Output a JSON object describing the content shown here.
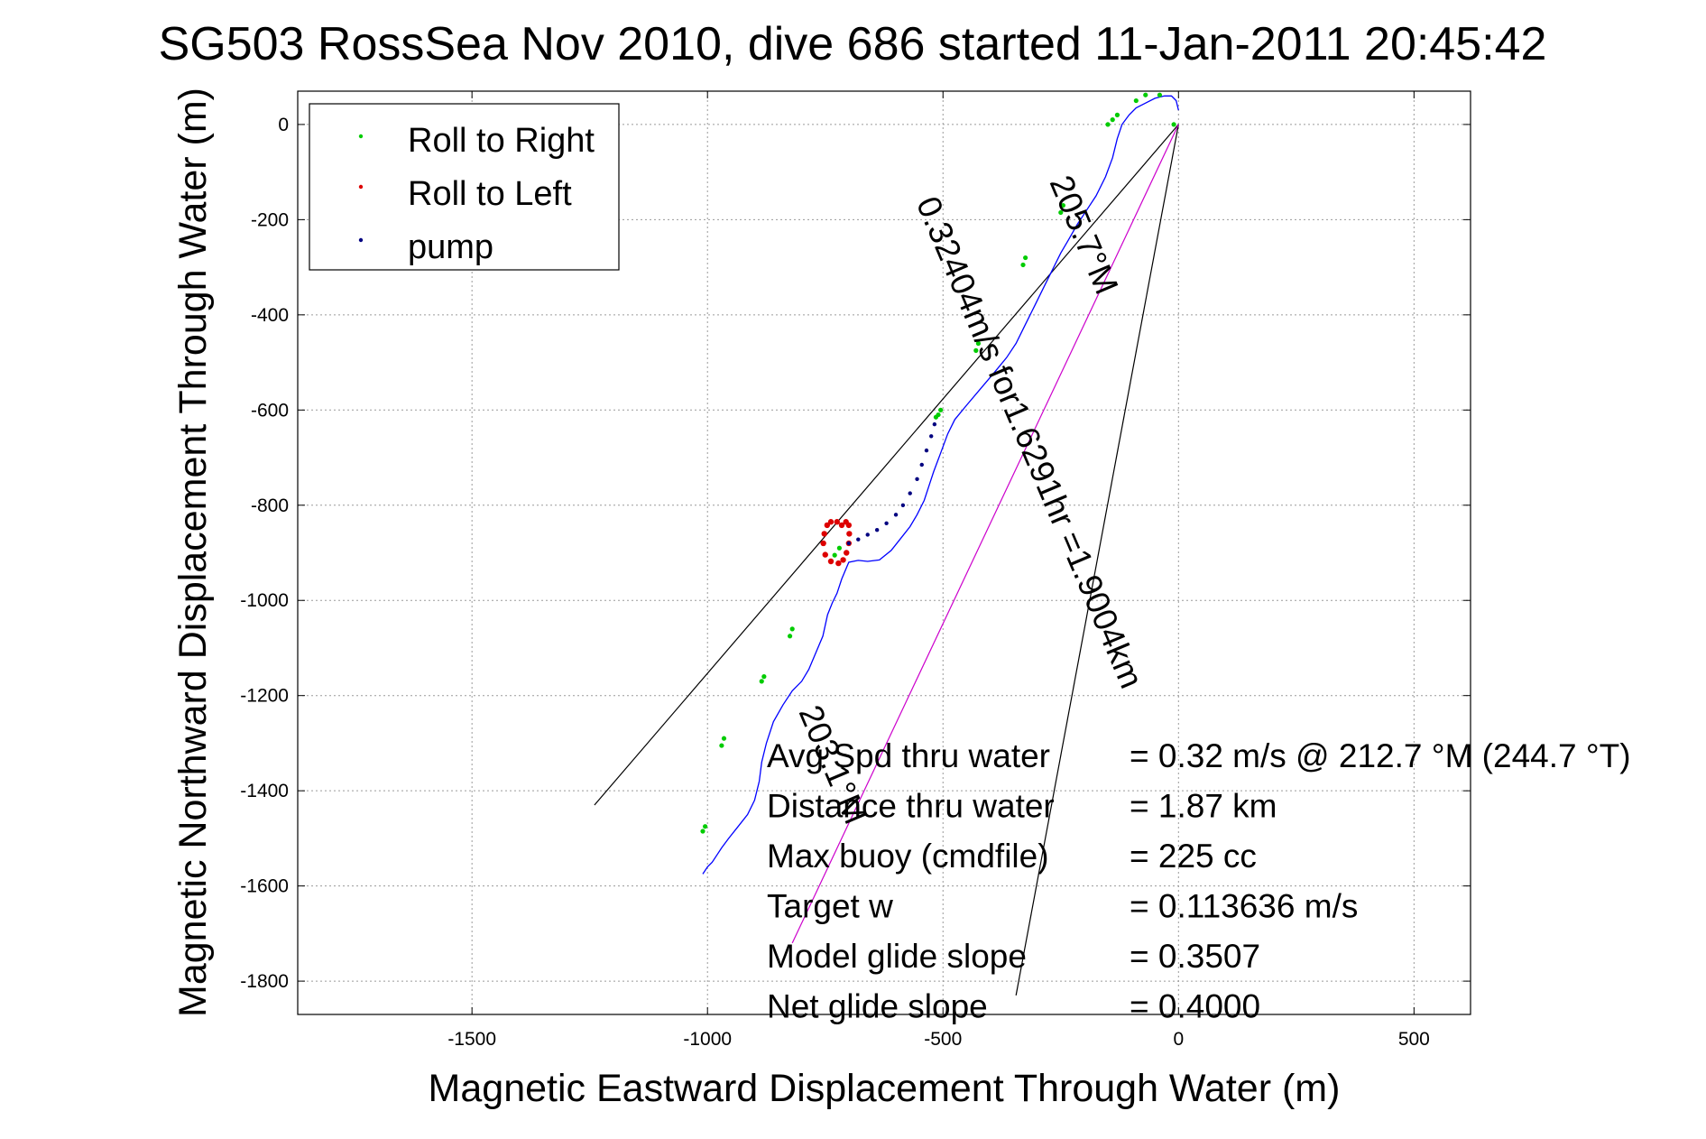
{
  "chart_data": {
    "type": "scatter",
    "title": "SG503 RossSea Nov 2010, dive 686 started 11-Jan-2011 20:45:42",
    "xlabel": "Magnetic Eastward Displacement Through Water (m)",
    "ylabel": "Magnetic Northward Displacement Through Water (m)",
    "xlim": [
      -1870,
      620
    ],
    "ylim": [
      -1870,
      70
    ],
    "x_ticks": [
      -1500,
      -1000,
      -500,
      0,
      500
    ],
    "y_ticks": [
      0,
      -200,
      -400,
      -600,
      -800,
      -1000,
      -1200,
      -1400,
      -1600,
      -1800
    ],
    "grid": true,
    "legend": {
      "placement": "top-left",
      "entries": [
        {
          "label": "Roll to Right",
          "color": "#00cc00"
        },
        {
          "label": "Roll to Left",
          "color": "#dd0000"
        },
        {
          "label": "pump",
          "color": "#000080"
        }
      ]
    },
    "track_color": "#0000ff",
    "track": {
      "x": [
        0,
        -5,
        -15,
        -30,
        -50,
        -70,
        -90,
        -105,
        -120,
        -130,
        -140,
        -155,
        -175,
        -195,
        -215,
        -235,
        -250,
        -265,
        -285,
        -305,
        -325,
        -345,
        -365,
        -390,
        -420,
        -450,
        -475,
        -490,
        -505,
        -520,
        -530,
        -540,
        -555,
        -570,
        -590,
        -610,
        -635,
        -660,
        -680,
        -700,
        -715,
        -725,
        -735,
        -745,
        -755,
        -770,
        -785,
        -800,
        -820,
        -840,
        -860,
        -875,
        -885,
        -890,
        -900,
        -915,
        -935,
        -955,
        -970,
        -980,
        -990,
        -1000,
        -1010
      ],
      "y": [
        30,
        50,
        60,
        60,
        55,
        45,
        35,
        20,
        0,
        -30,
        -70,
        -110,
        -150,
        -180,
        -210,
        -245,
        -270,
        -300,
        -340,
        -380,
        -420,
        -460,
        -490,
        -520,
        -555,
        -590,
        -620,
        -650,
        -690,
        -730,
        -760,
        -790,
        -820,
        -845,
        -870,
        -895,
        -915,
        -918,
        -916,
        -920,
        -955,
        -985,
        -1005,
        -1030,
        -1075,
        -1110,
        -1145,
        -1170,
        -1190,
        -1220,
        -1255,
        -1300,
        -1340,
        -1380,
        -1420,
        -1450,
        -1475,
        -1500,
        -1520,
        -1535,
        -1550,
        -1560,
        -1575
      ]
    },
    "roll_right": {
      "x": [
        -10,
        -40,
        -70,
        -90,
        -130,
        -140,
        -150,
        -245,
        -250,
        -325,
        -330,
        -425,
        -430,
        -505,
        -510,
        -515,
        -720,
        -730,
        -820,
        -825,
        -880,
        -885,
        -965,
        -970,
        -1005,
        -1010
      ],
      "y": [
        0,
        62,
        62,
        50,
        20,
        10,
        0,
        -170,
        -185,
        -280,
        -295,
        -460,
        -475,
        -600,
        -610,
        -615,
        -890,
        -905,
        -1060,
        -1075,
        -1160,
        -1170,
        -1290,
        -1305,
        -1475,
        -1485
      ]
    },
    "roll_left": {
      "x": [
        -715,
        -706,
        -700,
        -699,
        -700,
        -705,
        -712,
        -722,
        -738,
        -750,
        -754,
        -752,
        -746,
        -738,
        -725
      ],
      "y": [
        -842,
        -835,
        -842,
        -860,
        -880,
        -900,
        -915,
        -922,
        -918,
        -904,
        -880,
        -860,
        -842,
        -835,
        -835
      ]
    },
    "pump": {
      "x": [
        -700,
        -680,
        -660,
        -640,
        -620,
        -600,
        -585,
        -570,
        -555,
        -545,
        -535,
        -525,
        -518
      ],
      "y": [
        -880,
        -872,
        -862,
        -852,
        -838,
        -820,
        -800,
        -775,
        -745,
        -715,
        -685,
        -655,
        -630
      ]
    },
    "lines": [
      {
        "color": "#000000",
        "x": [
          0,
          -1240
        ],
        "y": [
          0,
          -1430
        ]
      },
      {
        "color": "#000000",
        "x": [
          0,
          -345
        ],
        "y": [
          0,
          -1830
        ]
      },
      {
        "color": "#cc00cc",
        "x": [
          0,
          -820
        ],
        "y": [
          0,
          -1720
        ]
      }
    ],
    "line_annotations": [
      {
        "text": "0.32404m/s for1.6291hr =1.9004km"
      },
      {
        "text": "205.7°M"
      },
      {
        "text": "203.1°M"
      }
    ],
    "stats": [
      {
        "label": "Avg Spd thru water",
        "value": "=  0.32 m/s @ 212.7  °M (244.7 °T)"
      },
      {
        "label": "Distance thru water",
        "value": "=  1.87 km"
      },
      {
        "label": "Max buoy (cmdfile)",
        "value": "= 225 cc"
      },
      {
        "label": "Target w",
        "value": "= 0.113636 m/s"
      },
      {
        "label": "Model glide slope",
        "value": "= 0.3507"
      },
      {
        "label": "Net glide slope",
        "value": "= 0.4000"
      }
    ]
  }
}
